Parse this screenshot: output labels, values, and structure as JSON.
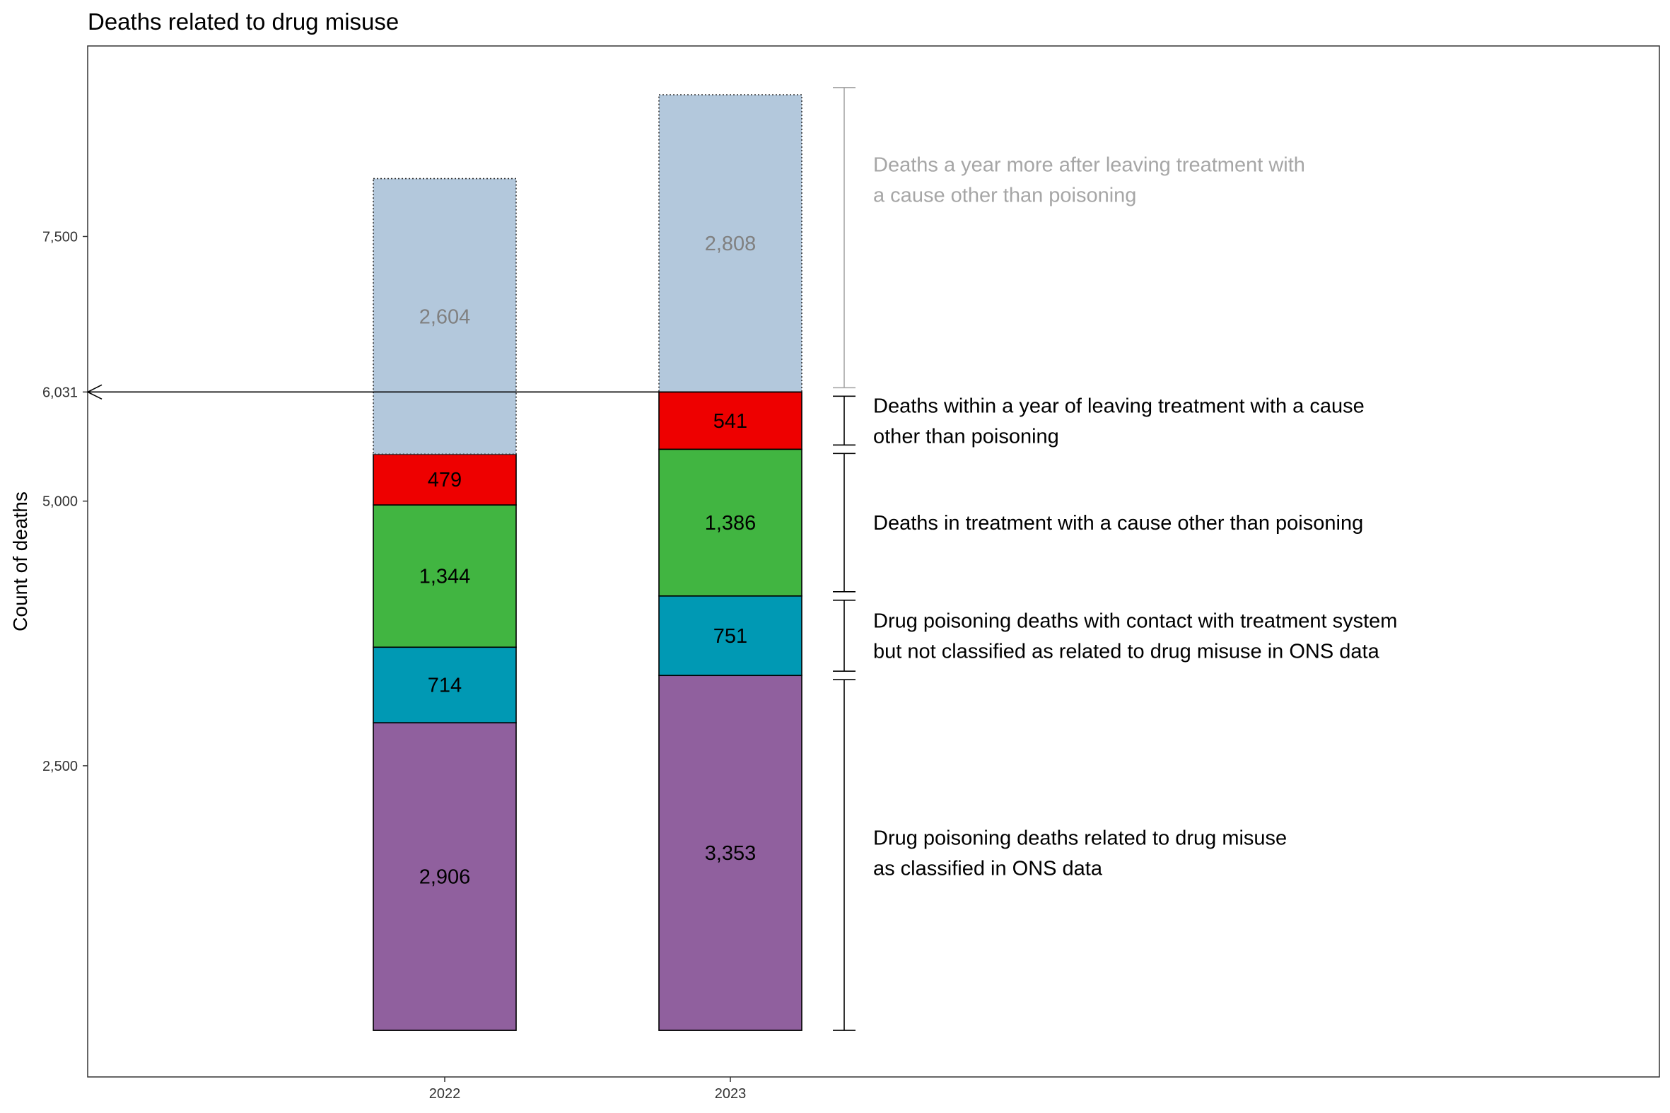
{
  "chart_data": {
    "type": "bar",
    "title": "Deaths related to drug misuse",
    "xlabel": "",
    "ylabel": "Count of deaths",
    "categories": [
      "2022",
      "2023"
    ],
    "series": [
      {
        "values": [
          2906,
          3353
        ],
        "color": "#90609E"
      },
      {
        "values": [
          714,
          751
        ],
        "color": "#0099B4"
      },
      {
        "values": [
          1344,
          1386
        ],
        "color": "#41B541"
      },
      {
        "values": [
          479,
          541
        ],
        "color": "#EE0000"
      },
      {
        "values": [
          2604,
          2808
        ],
        "color": "#B3C8DC"
      }
    ],
    "ylim": [
      -440,
      9300
    ],
    "yticks": [
      "2,500",
      "5,000",
      "6,031",
      "7,500"
    ],
    "reference_line": {
      "value": 6031,
      "label": "6,031"
    },
    "annotations": [
      {
        "lines": [
          "Drug poisoning deaths related to drug misuse",
          "as classified in ONS data"
        ],
        "color": "#000000"
      },
      {
        "lines": [
          "Drug poisoning deaths with contact with treatment system",
          "but not classified as related to drug misuse in ONS data"
        ],
        "color": "#000000"
      },
      {
        "lines": [
          "Deaths in treatment with a cause other than poisoning"
        ],
        "color": "#000000"
      },
      {
        "lines": [
          "Deaths within a year of leaving treatment with a cause",
          "other than poisoning"
        ],
        "color": "#000000"
      },
      {
        "lines": [
          "Deaths a year more after leaving treatment with",
          "a cause other than poisoning"
        ],
        "color": "#A6A6A6"
      }
    ],
    "grid": false,
    "legend": "none"
  }
}
